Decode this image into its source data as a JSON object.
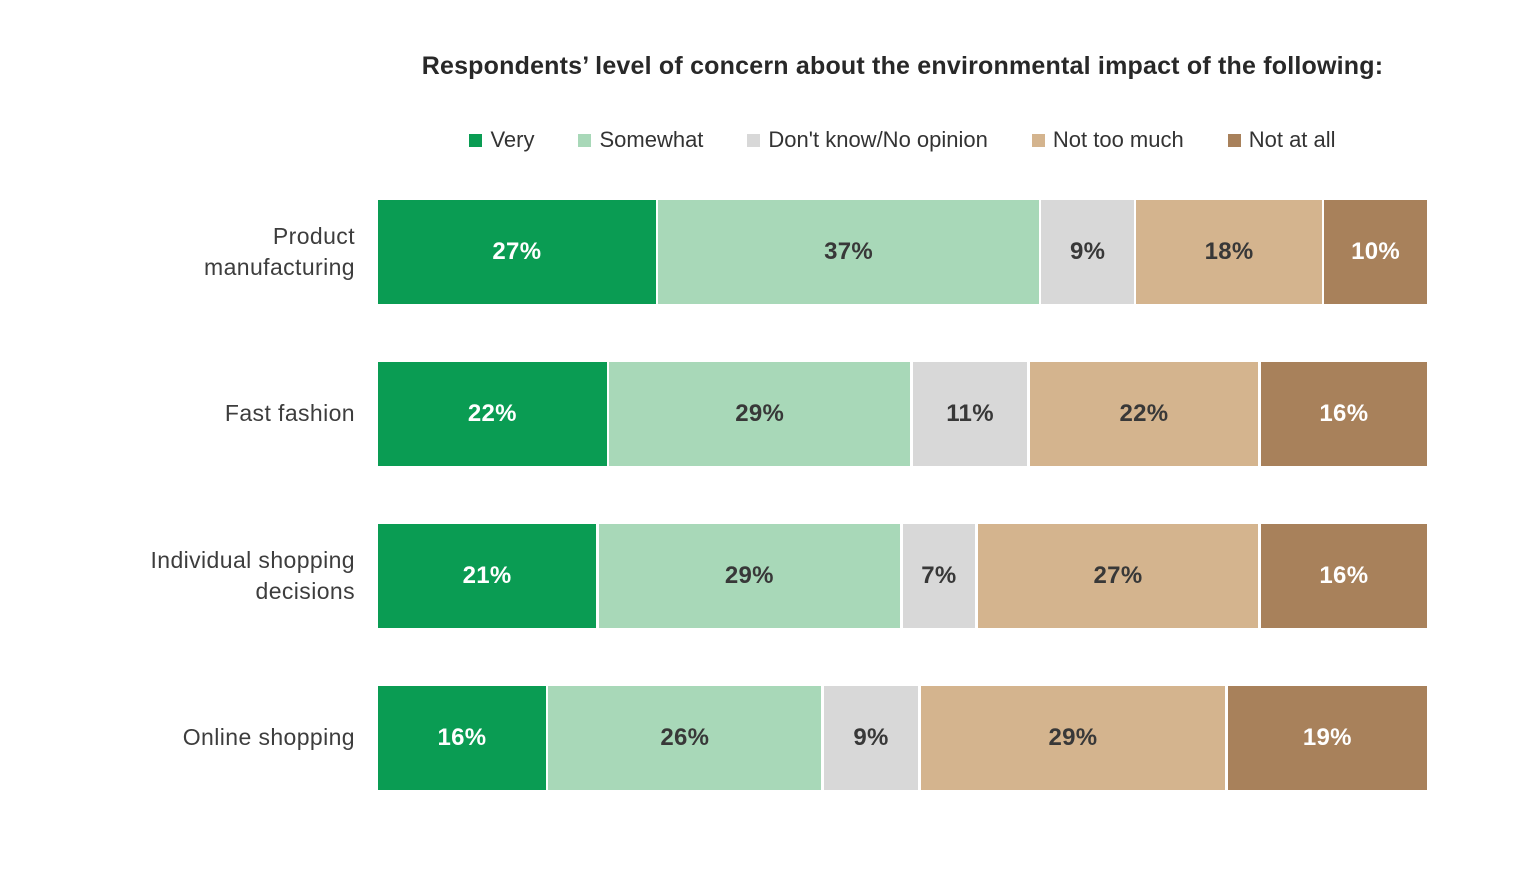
{
  "chart_data": {
    "type": "bar",
    "stacked": true,
    "orientation": "horizontal",
    "title": "Respondents’ level of concern about the environmental impact of the following:",
    "legend_position": "top",
    "grid": false,
    "value_suffix": "%",
    "axis_range": [
      0,
      100
    ],
    "categories": [
      "Product manufacturing",
      "Fast fashion",
      "Individual shopping decisions",
      "Online shopping"
    ],
    "series": [
      {
        "name": "Very",
        "color": "#0a9c53",
        "text_color": "#ffffff",
        "values": [
          27,
          22,
          21,
          16
        ]
      },
      {
        "name": "Somewhat",
        "color": "#a8d8b8",
        "text_color": "#383838",
        "values": [
          37,
          29,
          29,
          26
        ]
      },
      {
        "name": "Don't know/No opinion",
        "color": "#d8d8d8",
        "text_color": "#383838",
        "values": [
          9,
          11,
          7,
          9
        ]
      },
      {
        "name": "Not too much",
        "color": "#d4b48e",
        "text_color": "#383838",
        "values": [
          18,
          22,
          27,
          29
        ]
      },
      {
        "name": "Not at all",
        "color": "#a8815b",
        "text_color": "#ffffff",
        "values": [
          10,
          16,
          16,
          19
        ]
      }
    ]
  },
  "colors": {
    "background": "#ffffff",
    "title_text": "#282828",
    "label_text": "#3d3d3d",
    "legend_text": "#333333"
  }
}
